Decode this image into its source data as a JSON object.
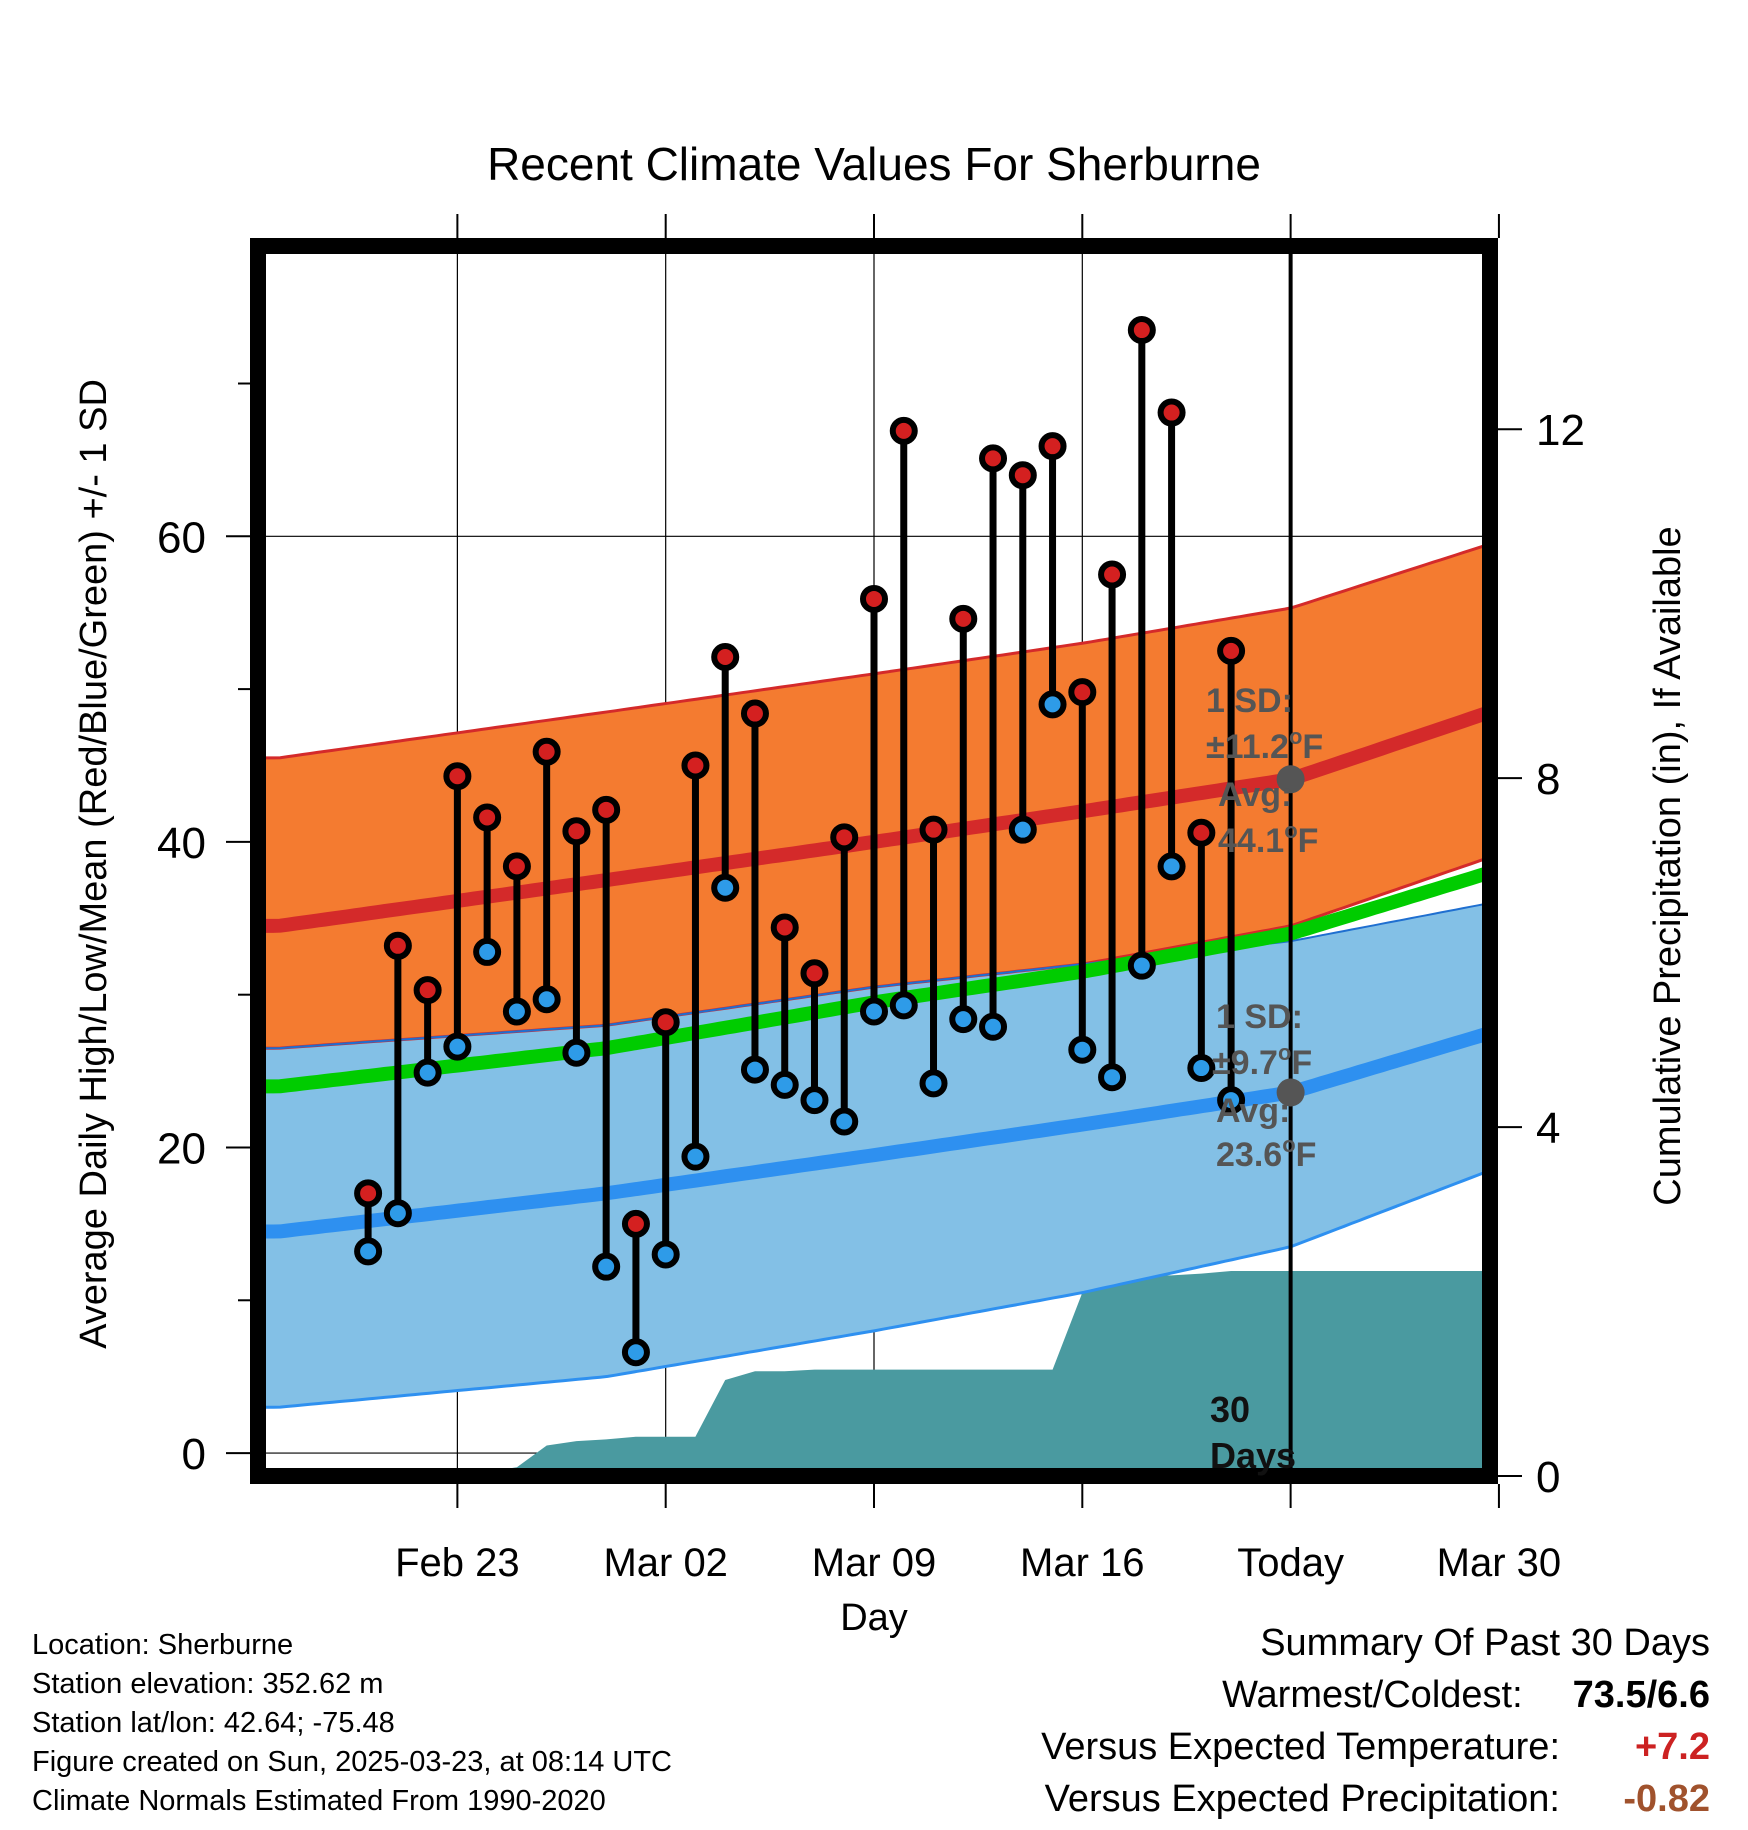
{
  "chart_data": {
    "type": "line",
    "title": "Recent Climate Values For Sherburne",
    "xlabel": "Day",
    "ylabel": "Average Daily High/Low/Mean (Red/Blue/Green) +/- 1 SD",
    "y2label": "Cumulative Precipitation (in), If Available",
    "ylim": [
      -1.5,
      79
    ],
    "y2lim": [
      0,
      14.1
    ],
    "xlim": [
      -3.7,
      37.7
    ],
    "x_ticks": [
      {
        "x": 3,
        "label": "Feb 23"
      },
      {
        "x": 10,
        "label": "Mar 02"
      },
      {
        "x": 17,
        "label": "Mar 09"
      },
      {
        "x": 24,
        "label": "Mar 16"
      },
      {
        "x": 31,
        "label": "Today"
      },
      {
        "x": 38,
        "label": "Mar 30"
      }
    ],
    "y_ticks": [
      0,
      20,
      40,
      60
    ],
    "y_minor_ticks": [
      10,
      30,
      50,
      70
    ],
    "y2_ticks": [
      0,
      4,
      8,
      12
    ],
    "grid": true,
    "today_x": 31,
    "normals": {
      "x": [
        -3,
        8,
        17,
        24,
        31,
        37.7
      ],
      "high_mean": [
        34.5,
        37.5,
        40,
        42,
        44.1,
        48.5
      ],
      "high_upper": [
        45.5,
        48.5,
        51,
        53,
        55.3,
        59.5
      ],
      "high_lower": [
        26.5,
        28,
        30.5,
        32,
        34.5,
        39
      ],
      "mean": [
        24,
        26.5,
        29.5,
        31.5,
        34,
        38
      ],
      "low_mean": [
        14.5,
        17,
        19.5,
        21.5,
        23.6,
        27.5
      ],
      "low_upper": [
        26.5,
        28,
        30.5,
        32,
        33.5,
        36
      ],
      "low_lower": [
        3,
        5,
        8,
        10.5,
        13.5,
        18.5
      ]
    },
    "observations": {
      "x": [
        0,
        1,
        2,
        3,
        4,
        5,
        6,
        7,
        8,
        9,
        10,
        11,
        12,
        13,
        14,
        15,
        16,
        17,
        18,
        19,
        20,
        21,
        22,
        23,
        24,
        25,
        26,
        27,
        28,
        29
      ],
      "high": [
        17,
        33.2,
        30.3,
        44.3,
        41.6,
        38.4,
        45.9,
        40.7,
        42.1,
        15,
        28.2,
        45,
        52.1,
        48.4,
        34.4,
        31.4,
        40.3,
        55.9,
        66.9,
        40.8,
        54.6,
        65.1,
        64,
        65.9,
        49.8,
        57.5,
        73.5,
        68.1,
        40.6,
        52.5
      ],
      "low": [
        13.2,
        15.7,
        24.9,
        26.6,
        32.8,
        28.9,
        29.7,
        26.2,
        12.2,
        6.6,
        13,
        19.4,
        37,
        25.1,
        24.1,
        23.1,
        21.7,
        28.9,
        29.3,
        24.2,
        28.4,
        27.9,
        40.8,
        49,
        26.4,
        24.6,
        31.9,
        38.4,
        25.2,
        23.1
      ],
      "low_above_normal_high": [
        false,
        false,
        false,
        false,
        true,
        false,
        false,
        false,
        false,
        false,
        false,
        false,
        true,
        false,
        false,
        false,
        false,
        false,
        false,
        false,
        false,
        false,
        true,
        true,
        false,
        false,
        false,
        true,
        false,
        false
      ]
    },
    "precipitation": {
      "x": [
        -3,
        2.9,
        3.1,
        4,
        5,
        6,
        7,
        8,
        9,
        10,
        11,
        12,
        13,
        14,
        15,
        16,
        17,
        18,
        19,
        20,
        21,
        22,
        23,
        24,
        25,
        26,
        27,
        28,
        29,
        30,
        31,
        37.7
      ],
      "cumulative": [
        0,
        0,
        0.05,
        0.05,
        0.1,
        0.35,
        0.4,
        0.42,
        0.45,
        0.45,
        0.45,
        1.1,
        1.2,
        1.2,
        1.22,
        1.22,
        1.22,
        1.22,
        1.22,
        1.22,
        1.22,
        1.22,
        1.22,
        2.1,
        2.3,
        2.3,
        2.3,
        2.32,
        2.35,
        2.35,
        2.35,
        2.35
      ]
    }
  },
  "annotations": {
    "high": {
      "sd_title": "1 SD:",
      "sd_value": "±11.2°F",
      "avg_title": "Avg:",
      "avg_value": "44.1°F",
      "avg": 44.1
    },
    "low": {
      "sd_title": "1 SD:",
      "sd_value": "±9.7°F",
      "avg_title": "Avg:",
      "avg_value": "23.6°F",
      "avg": 23.6
    },
    "days_label_1": "30",
    "days_label_2": "Days"
  },
  "info": {
    "location": "Location: Sherburne",
    "elevation": "Station elevation: 352.62 m",
    "latlon": "Station lat/lon: 42.64; -75.48",
    "created": "Figure created on Sun, 2025-03-23, at 08:14 UTC",
    "normals": "Climate Normals Estimated From 1990-2020"
  },
  "summary": {
    "title": "Summary Of Past 30 Days",
    "warm_cold_label": "Warmest/Coldest:",
    "warm_cold_value": "73.5/6.6",
    "temp_label": "Versus Expected Temperature:",
    "temp_value": "+7.2",
    "temp_color": "#cc2222",
    "precip_label": "Versus Expected Precipitation:",
    "precip_value": "-0.82",
    "precip_color": "#a0522d"
  },
  "colors": {
    "high_band": "#f47b30",
    "high_mean": "#d42a2a",
    "low_band": "#83c0e6",
    "low_mean": "#2e90f0",
    "mean": "#00cc00",
    "precip": "#4a9aa0",
    "high_marker": "#d42020",
    "low_marker": "#2e9be8",
    "today_marker": "#555555"
  }
}
